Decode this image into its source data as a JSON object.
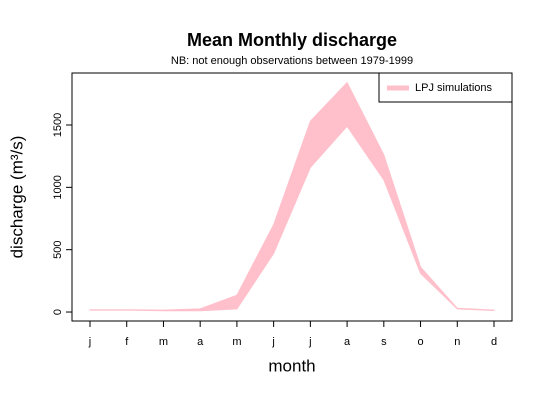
{
  "chart_data": {
    "type": "band",
    "title": "Mean Monthly discharge",
    "subtitle": "NB: not enough observations between 1979-1999",
    "x_label": "month",
    "y_label": "discharge (m³/s)",
    "categories": [
      "j",
      "f",
      "m",
      "a",
      "m",
      "j",
      "j",
      "a",
      "s",
      "o",
      "n",
      "d"
    ],
    "series": [
      {
        "name": "LPJ simulations",
        "color": "#ffc0cb",
        "lower": [
          15,
          15,
          10,
          10,
          25,
          470,
          1160,
          1490,
          1060,
          310,
          25,
          12
        ],
        "upper": [
          18,
          18,
          15,
          25,
          135,
          700,
          1530,
          1840,
          1260,
          360,
          30,
          15
        ]
      }
    ],
    "ylim": [
      -72,
      1917
    ],
    "yticks": [
      0,
      500,
      1000,
      1500
    ],
    "legend": "top-right"
  }
}
